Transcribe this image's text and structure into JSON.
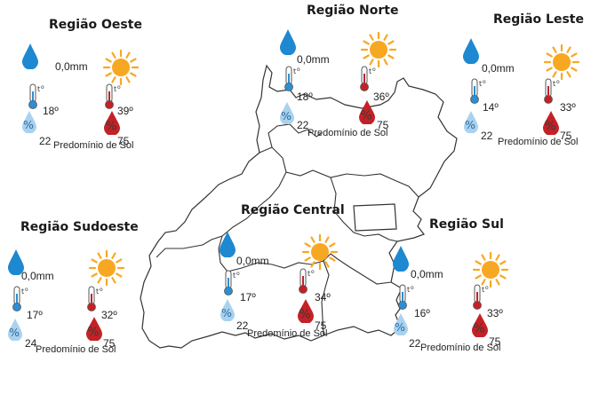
{
  "regions": [
    {
      "key": "oeste",
      "name": "Região Oeste",
      "rain": "0,0mm",
      "tmin": "18º",
      "tmax": "39º",
      "hmin": "22",
      "hmax": "75",
      "cond": "Predomínio de Sol"
    },
    {
      "key": "norte",
      "name": "Região Norte",
      "rain": "0,0mm",
      "tmin": "18º",
      "tmax": "36º",
      "hmin": "22",
      "hmax": "75",
      "cond": "Predomínio de Sol"
    },
    {
      "key": "leste",
      "name": "Região Leste",
      "rain": "0,0mm",
      "tmin": "14º",
      "tmax": "33º",
      "hmin": "22",
      "hmax": "75",
      "cond": "Predomínio de Sol"
    },
    {
      "key": "central",
      "name": "Região Central",
      "rain": "0,0mm",
      "tmin": "17º",
      "tmax": "34º",
      "hmin": "22",
      "hmax": "75",
      "cond": "Predomínio de Sol"
    },
    {
      "key": "sudoeste",
      "name": "Região Sudoeste",
      "rain": "0,0mm",
      "tmin": "17º",
      "tmax": "32º",
      "hmin": "24",
      "hmax": "75",
      "cond": "Predomínio de Sol"
    },
    {
      "key": "sul",
      "name": "Região Sul",
      "rain": "0,0mm",
      "tmin": "16º",
      "tmax": "33º",
      "hmin": "22",
      "hmax": "75",
      "cond": "Predomínio de Sol"
    }
  ],
  "icons": {
    "rain": "rain-drop-icon",
    "sun": "sun-icon",
    "tmin": "thermometer-cold-icon",
    "tmax": "thermometer-hot-icon",
    "hmin": "humidity-low-icon",
    "hmax": "humidity-high-icon"
  },
  "colors": {
    "rain": "#1e88d0",
    "sun": "#f7a823",
    "cold": "#2a8fd6",
    "hot": "#c42127",
    "humidity_low": "#a9d2ee",
    "humidity_high": "#c42127",
    "outline": "#333333"
  }
}
